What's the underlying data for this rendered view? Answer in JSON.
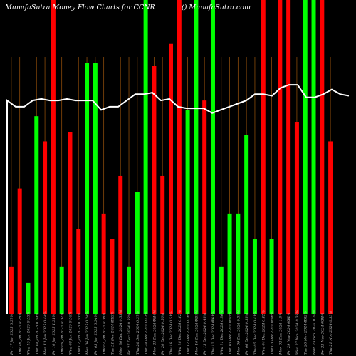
{
  "chart_data": {
    "type": "bar",
    "title_left": "MunafaSutra Money Flow Charts for CCNR",
    "title_right": "() MunafaSutra.com",
    "colors": {
      "up": "#00ff00",
      "down": "#ff0000",
      "line": "#ffffff",
      "grid": "#8a4a0a",
      "background": "#000000"
    },
    "ylim": [
      0,
      100
    ],
    "bars": [
      {
        "label": "Fri 17 Jan 2025 0.37%",
        "color": "down",
        "value": 15
      },
      {
        "label": "Thu 16 Jan 2025 0.28%",
        "color": "down",
        "value": 40
      },
      {
        "label": "Wed 15 Jan 2025 0.33%",
        "color": "up",
        "value": 10
      },
      {
        "label": "Tue 14 Jan 2025 0.39%",
        "color": "up",
        "value": 63
      },
      {
        "label": "Mon 13 Jan 2025 0.44%",
        "color": "down",
        "value": 55
      },
      {
        "label": "Fri 10 Jan 2025 1.31%",
        "color": "down",
        "value": 100
      },
      {
        "label": "Thu 09 Jan 2025 0.37%",
        "color": "up",
        "value": 15
      },
      {
        "label": "Wed 08 Jan 2025 0.36%",
        "color": "down",
        "value": 58
      },
      {
        "label": "Tue 07 Jan 2025 0.33%",
        "color": "down",
        "value": 27
      },
      {
        "label": "Mon 06 Jan 2025 0.34%",
        "color": "up",
        "value": 80
      },
      {
        "label": "Fri 03 Jan 2025 0.34%",
        "color": "up",
        "value": 80
      },
      {
        "label": "Thu 02 Jan 2025 0.36%",
        "color": "down",
        "value": 32
      },
      {
        "label": "Tue 31 Dec 2024 0.33%",
        "color": "down",
        "value": 24
      },
      {
        "label": "Mon 30 Dec 2024 0.33%",
        "color": "down",
        "value": 44
      },
      {
        "label": "Fri 27 Dec 2024 0.33%",
        "color": "up",
        "value": 15
      },
      {
        "label": "Thu 26 Dec 2024 0.37%",
        "color": "up",
        "value": 39
      },
      {
        "label": "Tue 24 Dec 2024 0.41%",
        "color": "up",
        "value": 100
      },
      {
        "label": "Mon 23 Dec 2024 0.46%",
        "color": "down",
        "value": 79
      },
      {
        "label": "Fri 20 Dec 2024 0.56%",
        "color": "down",
        "value": 44
      },
      {
        "label": "Thu 19 Dec 2024 0.51%",
        "color": "down",
        "value": 86
      },
      {
        "label": "Wed 18 Dec 2024 0.42%",
        "color": "down",
        "value": 100
      },
      {
        "label": "Tue 17 Dec 2024 0.36%",
        "color": "up",
        "value": 65
      },
      {
        "label": "Mon 16 Dec 2024 0.39%",
        "color": "up",
        "value": 100
      },
      {
        "label": "Fri 13 Dec 2024 0.48%",
        "color": "down",
        "value": 68
      },
      {
        "label": "Thu 12 Dec 2024 0.41%",
        "color": "up",
        "value": 100
      },
      {
        "label": "Wed 11 Dec 2024 0.36%",
        "color": "up",
        "value": 15
      },
      {
        "label": "Tue 10 Dec 2024 0.35%",
        "color": "up",
        "value": 32
      },
      {
        "label": "Mon 09 Dec 2024 0.39%",
        "color": "up",
        "value": 32
      },
      {
        "label": "Fri 06 Dec 2024 0.38%",
        "color": "up",
        "value": 57
      },
      {
        "label": "Thu 05 Dec 2024 0.41%",
        "color": "up",
        "value": 24
      },
      {
        "label": "Wed 04 Dec 2024 0.42%",
        "color": "down",
        "value": 100
      },
      {
        "label": "Tue 03 Dec 2024 0.36%",
        "color": "up",
        "value": 24
      },
      {
        "label": "Mon 02 Dec 2024 1.5%",
        "color": "down",
        "value": 100
      },
      {
        "label": "Fri 29 Nov 2024 0.42%",
        "color": "down",
        "value": 100
      },
      {
        "label": "Wed 27 Nov 2024 0.38%",
        "color": "down",
        "value": 61
      },
      {
        "label": "Tue 26 Nov 2024 0.42%",
        "color": "up",
        "value": 100
      },
      {
        "label": "Mon 25 Nov 2024 0.32%",
        "color": "up",
        "value": 100
      },
      {
        "label": "Fri 22 Nov 2024 0.34%",
        "color": "down",
        "value": 100
      },
      {
        "label": "Thu 21 Nov 2024 0.33%",
        "color": "down",
        "value": 55
      }
    ],
    "line_values": [
      68,
      66,
      66,
      68,
      68.5,
      68,
      68,
      68.5,
      68,
      68,
      68,
      65,
      66,
      66,
      68,
      70,
      70,
      70.5,
      68,
      68.5,
      66,
      65.5,
      65.5,
      65.5,
      64,
      65,
      66,
      67,
      68,
      70,
      70,
      69.5,
      72,
      73,
      73,
      69,
      69,
      70,
      71.5,
      70,
      69.5
    ],
    "mid_markers": [
      "0%",
      "0%",
      "0%",
      "0%",
      "0%",
      "0%",
      "0%",
      "0%",
      "0%"
    ]
  }
}
